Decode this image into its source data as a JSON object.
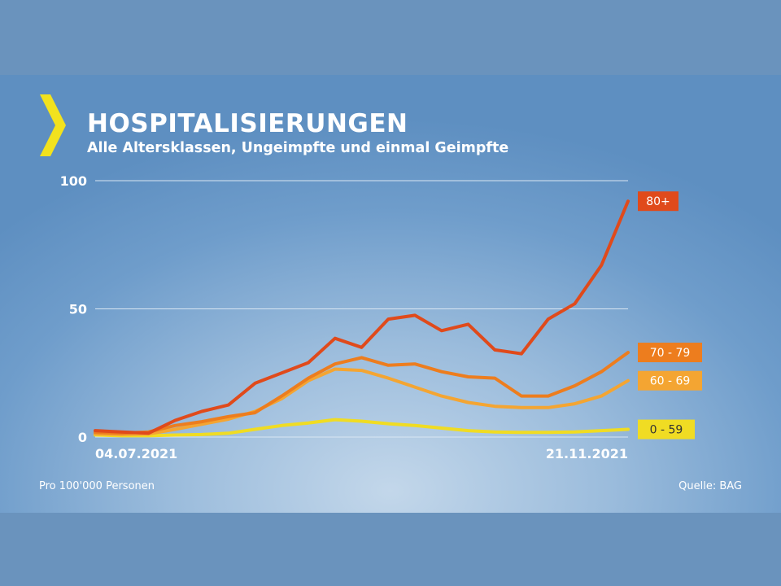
{
  "header": {
    "title": "HOSPITALISIERUNGEN",
    "subtitle": "Alle Altersklassen, Ungeimpfte und einmal Geimpfte"
  },
  "footer": {
    "note": "Pro 100'000 Personen",
    "source": "Quelle: BAG"
  },
  "colors": {
    "background": "#6a93bd",
    "chevron": "#f2e21e",
    "gridline": "#d9e6f2"
  },
  "chart_data": {
    "type": "line",
    "title": "HOSPITALISIERUNGEN",
    "subtitle": "Alle Altersklassen, Ungeimpfte und einmal Geimpfte",
    "ylim": [
      0,
      100
    ],
    "yticks": [
      0,
      50,
      100
    ],
    "x_labels": [
      "04.07.2021",
      "21.11.2021"
    ],
    "x": [
      0,
      1,
      2,
      3,
      4,
      5,
      6,
      7,
      8,
      9,
      10,
      11,
      12,
      13,
      14,
      15,
      16,
      17,
      18,
      19,
      20
    ],
    "grid": true,
    "legend_placement": "right, at line ends",
    "series": [
      {
        "name": "0 - 59",
        "color": "#f0dc23",
        "values": [
          0.8,
          0.5,
          0.5,
          0.8,
          1.0,
          1.5,
          3.0,
          4.5,
          5.5,
          6.8,
          6.2,
          5.2,
          4.5,
          3.5,
          2.5,
          2.0,
          1.8,
          1.8,
          2.0,
          2.5,
          3.0
        ]
      },
      {
        "name": "60 - 69",
        "color": "#f4a532",
        "values": [
          1.2,
          1.0,
          1.2,
          3.0,
          5.0,
          7.0,
          10.0,
          15.0,
          22.0,
          26.5,
          26.0,
          23.0,
          19.5,
          16.0,
          13.5,
          12.0,
          11.5,
          11.5,
          13.0,
          16.0,
          22.0
        ]
      },
      {
        "name": "70 - 79",
        "color": "#ed7d1e",
        "values": [
          1.8,
          1.5,
          2.0,
          4.5,
          6.0,
          8.0,
          9.5,
          16.0,
          23.0,
          28.5,
          31.0,
          28.0,
          28.5,
          25.5,
          23.5,
          23.0,
          16.0,
          16.0,
          20.0,
          25.5,
          33.0
        ]
      },
      {
        "name": "80+",
        "color": "#e04a1b",
        "values": [
          2.5,
          2.0,
          1.5,
          6.5,
          10.0,
          12.5,
          21.0,
          25.0,
          29.0,
          38.5,
          35.0,
          46.0,
          47.5,
          41.5,
          44.0,
          34.0,
          32.5,
          46.0,
          52.0,
          67.0,
          92.0
        ]
      }
    ]
  }
}
